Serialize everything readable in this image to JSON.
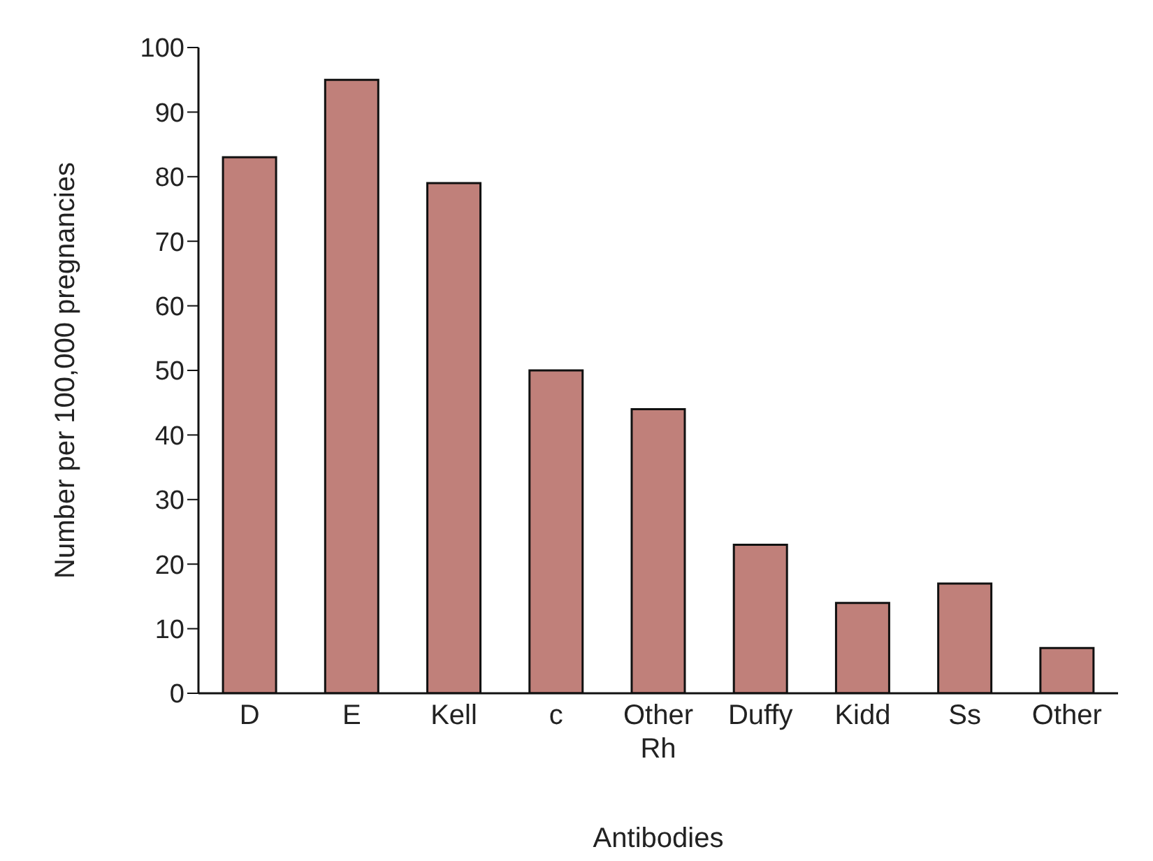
{
  "chart_data": {
    "type": "bar",
    "xlabel": "Antibodies",
    "ylabel": "Number per 100,000 pregnancies",
    "categories": [
      "D",
      "E",
      "Kell",
      "c",
      "Other Rh",
      "Duffy",
      "Kidd",
      "Ss",
      "Other"
    ],
    "values": [
      83,
      95,
      79,
      50,
      44,
      23,
      14,
      17,
      7
    ],
    "color": "#c0807a",
    "ylim": [
      0,
      100
    ],
    "yticks": [
      0,
      10,
      20,
      30,
      40,
      50,
      60,
      70,
      80,
      90,
      100
    ],
    "grid": false,
    "legend": false
  }
}
